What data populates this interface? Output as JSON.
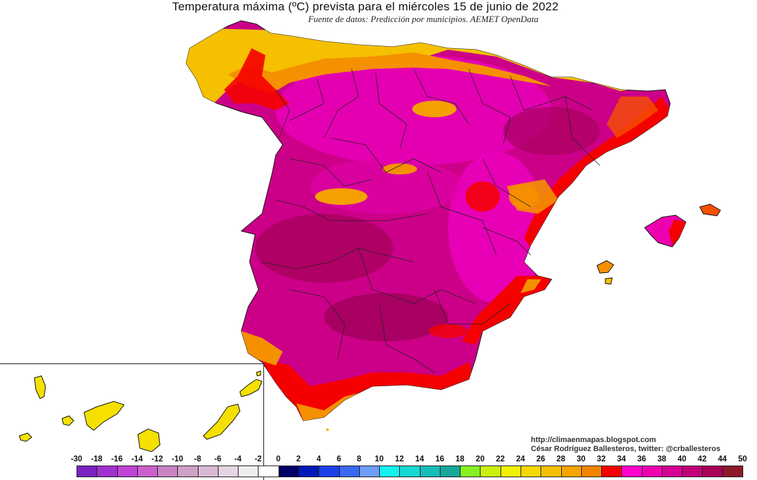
{
  "header": {
    "title": "Temperatura máxima (ºC) prevista para el miércoles 15 de junio de 2022",
    "subtitle": "Fuente de datos: Predicción por municipios. AEMET OpenData"
  },
  "credits": {
    "line1": "http://climaenmapas.blogspot.com",
    "line2": "César Rodríguez Ballesteros, twitter: @crballesteros"
  },
  "legend": {
    "labels": [
      "-30",
      "-18",
      "-16",
      "-14",
      "-12",
      "-10",
      "-8",
      "-6",
      "-4",
      "-2",
      "0",
      "2",
      "4",
      "6",
      "8",
      "10",
      "12",
      "14",
      "16",
      "18",
      "20",
      "22",
      "24",
      "26",
      "28",
      "30",
      "32",
      "34",
      "36",
      "38",
      "40",
      "42",
      "44",
      "50"
    ],
    "colors": [
      "#7a22c2",
      "#a12fcf",
      "#c043d6",
      "#cc5fcc",
      "#c983c4",
      "#cfa0c8",
      "#d9b8d4",
      "#e6d5e2",
      "#eeeeee",
      "#ffffff",
      "#000066",
      "#0018b8",
      "#1c3fe8",
      "#3a6af5",
      "#6f9cf5",
      "#15f0f0",
      "#17d7d4",
      "#17bcb6",
      "#16a79b",
      "#86f021",
      "#c8f00a",
      "#f0f000",
      "#f5d800",
      "#f5bf00",
      "#f5a400",
      "#f58500",
      "#f50000",
      "#ff00cc",
      "#ee00b0",
      "#d60095",
      "#c10078",
      "#ab0058",
      "#8d1a2a"
    ]
  },
  "map_colors": {
    "coast_yellow": "#f5c000",
    "orange": "#f59000",
    "red": "#f50000",
    "magenta": "#f000b0",
    "deep_magenta": "#c8006e",
    "darkest": "#a0005a",
    "canarias": "#f5e000"
  }
}
